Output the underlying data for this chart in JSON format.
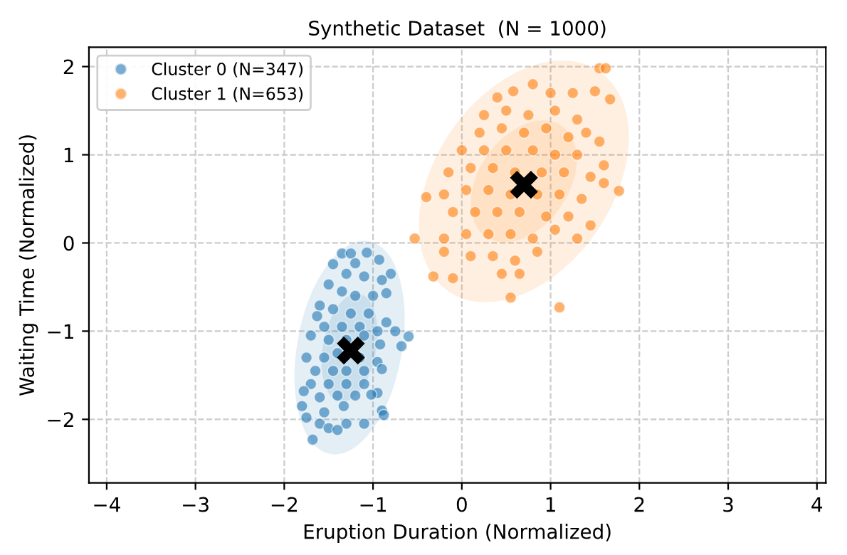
{
  "chart_data": {
    "type": "scatter",
    "title": "Synthetic Dataset  (N = 1000)",
    "xlabel": "Eruption Duration (Normalized)",
    "ylabel": "Waiting Time (Normalized)",
    "xlim": [
      -4.2,
      4.1
    ],
    "ylim": [
      -2.72,
      2.22
    ],
    "xticks": [
      -4,
      -3,
      -2,
      -1,
      0,
      1,
      2,
      3,
      4
    ],
    "yticks": [
      -2,
      -1,
      0,
      1,
      2
    ],
    "grid": true,
    "legend": "top left",
    "series": [
      {
        "name": "Cluster 0 (N=347)",
        "color": "#1f77b4",
        "marker": "circle",
        "x": [
          -1.35,
          -1.25,
          -1.07,
          -0.93,
          -0.8,
          -1.45,
          -1.2,
          -0.9,
          -1.5,
          -1.3,
          -1.1,
          -1.35,
          -1.2,
          -1.0,
          -0.85,
          -1.6,
          -1.63,
          -1.45,
          -1.25,
          -1.05,
          -0.85,
          -1.55,
          -1.35,
          -1.15,
          -0.95,
          -0.75,
          -1.7,
          -1.5,
          -1.3,
          -1.1,
          -0.92,
          -0.68,
          -0.6,
          -1.75,
          -1.55,
          -1.4,
          -1.15,
          -0.95,
          -1.65,
          -1.45,
          -1.3,
          -1.1,
          -0.9,
          -1.7,
          -1.5,
          -1.3,
          -1.1,
          -0.95,
          -1.78,
          -1.6,
          -1.4,
          -1.2,
          -1.02,
          -1.8,
          -1.55,
          -1.33,
          -0.9,
          -0.88,
          -1.75,
          -1.6,
          -1.3,
          -1.1,
          -1.5,
          -1.4,
          -1.68
        ],
        "values": [
          -0.12,
          -0.12,
          -0.11,
          -0.19,
          -0.35,
          -0.24,
          -0.23,
          -0.42,
          -0.47,
          -0.35,
          -0.38,
          -0.55,
          -0.6,
          -0.6,
          -0.57,
          -0.71,
          -0.83,
          -0.75,
          -0.8,
          -0.8,
          -0.9,
          -0.95,
          -0.95,
          -0.95,
          -1.0,
          -1.0,
          -1.05,
          -1.1,
          -1.1,
          -1.05,
          -1.15,
          -1.17,
          -1.06,
          -1.3,
          -1.3,
          -1.25,
          -1.3,
          -1.35,
          -1.45,
          -1.45,
          -1.45,
          -1.45,
          -1.43,
          -1.6,
          -1.6,
          -1.6,
          -1.6,
          -1.7,
          -1.68,
          -1.75,
          -1.73,
          -1.73,
          -1.72,
          -1.85,
          -1.92,
          -1.85,
          -1.9,
          -1.95,
          -1.98,
          -2.05,
          -2.05,
          -2.05,
          -2.1,
          -2.12,
          -2.23
        ]
      },
      {
        "name": "Cluster 1 (N=653)",
        "color": "#ff7f0e",
        "marker": "circle",
        "x": [
          1.55,
          1.62,
          1.67,
          0.58,
          0.8,
          0.4,
          1.0,
          1.25,
          1.5,
          0.25,
          0.5,
          0.75,
          1.05,
          1.3,
          0.2,
          0.45,
          0.7,
          0.95,
          1.2,
          1.4,
          1.55,
          0.0,
          0.25,
          0.5,
          0.8,
          1.05,
          1.3,
          -0.15,
          0.1,
          0.35,
          0.6,
          0.9,
          1.15,
          1.45,
          1.6,
          -0.4,
          -0.2,
          0.05,
          0.3,
          0.55,
          0.85,
          1.1,
          1.35,
          1.6,
          1.77,
          -0.1,
          0.15,
          0.4,
          0.65,
          0.95,
          1.2,
          1.45,
          -0.53,
          -0.2,
          0.05,
          0.3,
          0.55,
          0.8,
          1.05,
          1.3,
          -0.2,
          0.1,
          0.35,
          0.6,
          0.85,
          -0.32,
          -0.1,
          0.45,
          0.65,
          0.55,
          1.1
        ],
        "values": [
          1.98,
          1.98,
          1.63,
          1.72,
          1.8,
          1.65,
          1.7,
          1.7,
          1.72,
          1.45,
          1.5,
          1.45,
          1.5,
          1.4,
          1.25,
          1.3,
          1.25,
          1.3,
          1.2,
          1.25,
          1.15,
          1.05,
          1.05,
          1.05,
          1.05,
          1.0,
          1.0,
          0.8,
          0.85,
          0.85,
          0.8,
          0.8,
          0.8,
          0.75,
          0.88,
          0.52,
          0.55,
          0.6,
          0.6,
          0.55,
          0.55,
          0.55,
          0.5,
          0.68,
          0.59,
          0.35,
          0.35,
          0.35,
          0.35,
          0.3,
          0.3,
          0.2,
          0.05,
          0.05,
          0.1,
          0.1,
          0.1,
          0.05,
          0.15,
          0.05,
          -0.1,
          -0.15,
          -0.15,
          -0.2,
          -0.1,
          -0.38,
          -0.4,
          -0.35,
          -0.35,
          -0.62,
          -0.73
        ]
      },
      {
        "color": "#000000",
        "marker": "cross",
        "x": [
          -1.25,
          0.7
        ],
        "values": [
          -1.22,
          0.66
        ]
      }
    ]
  }
}
